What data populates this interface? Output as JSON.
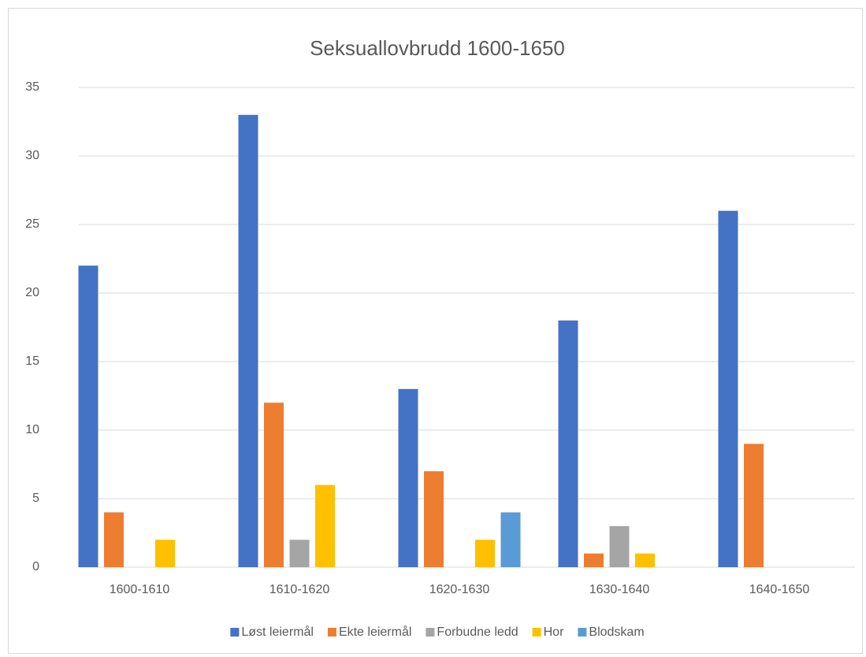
{
  "chart_data": {
    "type": "bar",
    "title": "Seksuallovbrudd 1600-1650",
    "categories": [
      "1600-1610",
      "1610-1620",
      "1620-1630",
      "1630-1640",
      "1640-1650"
    ],
    "series": [
      {
        "name": "Løst leiermål",
        "color": "#4472c4",
        "values": [
          22,
          33,
          13,
          18,
          26
        ]
      },
      {
        "name": "Ekte leiermål",
        "color": "#ed7d31",
        "values": [
          4,
          12,
          7,
          1,
          9
        ]
      },
      {
        "name": "Forbudne ledd",
        "color": "#a5a5a5",
        "values": [
          0,
          2,
          0,
          3,
          0
        ]
      },
      {
        "name": "Hor",
        "color": "#ffc000",
        "values": [
          2,
          6,
          2,
          1,
          0
        ]
      },
      {
        "name": "Blodskam",
        "color": "#5b9bd5",
        "values": [
          0,
          0,
          4,
          0,
          0
        ]
      }
    ],
    "ylim": [
      0,
      35
    ],
    "yticks": [
      0,
      5,
      10,
      15,
      20,
      25,
      30,
      35
    ],
    "grid": true,
    "legend": "bottom"
  }
}
